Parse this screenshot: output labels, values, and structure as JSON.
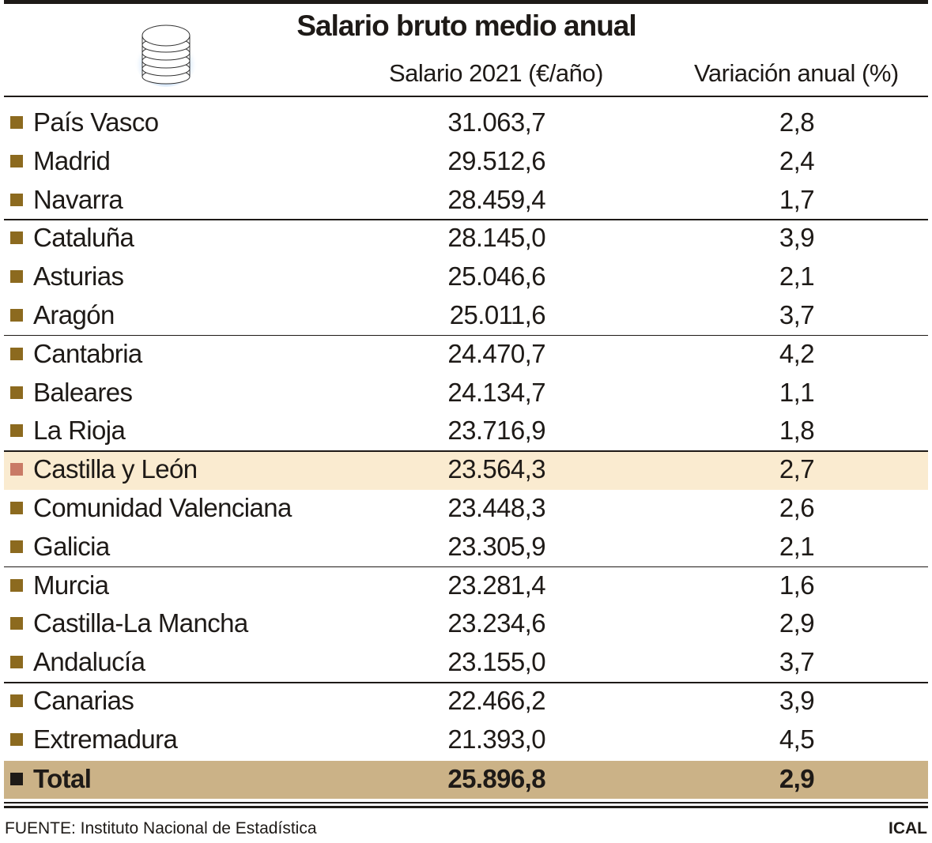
{
  "title": "Salario bruto medio anual",
  "icon": "coin-stack-icon",
  "columns": {
    "salary": "Salario 2021 (€/año)",
    "variation": "Variación anual (%)"
  },
  "colors": {
    "marker": "#8c6a1f",
    "highlight_marker": "#c97a66",
    "highlight_bg": "#faebd0",
    "total_bg": "#cbb287",
    "total_marker": "#1e1a17"
  },
  "chart_data": {
    "type": "table",
    "title": "Salario bruto medio anual",
    "columns": [
      "",
      "Salario 2021 (€/año)",
      "Variación anual (%)"
    ],
    "rows": [
      {
        "region": "País Vasco",
        "salary": "31.063,7",
        "variation": "2,8"
      },
      {
        "region": "Madrid",
        "salary": "29.512,6",
        "variation": "2,4"
      },
      {
        "region": "Navarra",
        "salary": "28.459,4",
        "variation": "1,7"
      },
      {
        "region": "Cataluña",
        "salary": "28.145,0",
        "variation": "3,9"
      },
      {
        "region": "Asturias",
        "salary": "25.046,6",
        "variation": "2,1"
      },
      {
        "region": "Aragón",
        "salary": "25.011,6",
        "variation": "3,7"
      },
      {
        "region": "Cantabria",
        "salary": "24.470,7",
        "variation": "4,2"
      },
      {
        "region": "Baleares",
        "salary": "24.134,7",
        "variation": "1,1"
      },
      {
        "region": "La Rioja",
        "salary": "23.716,9",
        "variation": "1,8"
      },
      {
        "region": "Castilla y León",
        "salary": "23.564,3",
        "variation": "2,7",
        "highlight": true
      },
      {
        "region": "Comunidad Valenciana",
        "salary": "23.448,3",
        "variation": "2,6"
      },
      {
        "region": "Galicia",
        "salary": "23.305,9",
        "variation": "2,1"
      },
      {
        "region": "Murcia",
        "salary": "23.281,4",
        "variation": "1,6"
      },
      {
        "region": "Castilla-La Mancha",
        "salary": "23.234,6",
        "variation": "2,9"
      },
      {
        "region": "Andalucía",
        "salary": "23.155,0",
        "variation": "3,7"
      },
      {
        "region": "Canarias",
        "salary": "22.466,2",
        "variation": "3,9"
      },
      {
        "region": "Extremadura",
        "salary": "21.393,0",
        "variation": "4,5"
      }
    ],
    "total": {
      "region": "Total",
      "salary": "25.896,8",
      "variation": "2,9"
    }
  },
  "footer": {
    "source": "FUENTE: Instituto Nacional de Estadística",
    "credit": "ICAL"
  }
}
